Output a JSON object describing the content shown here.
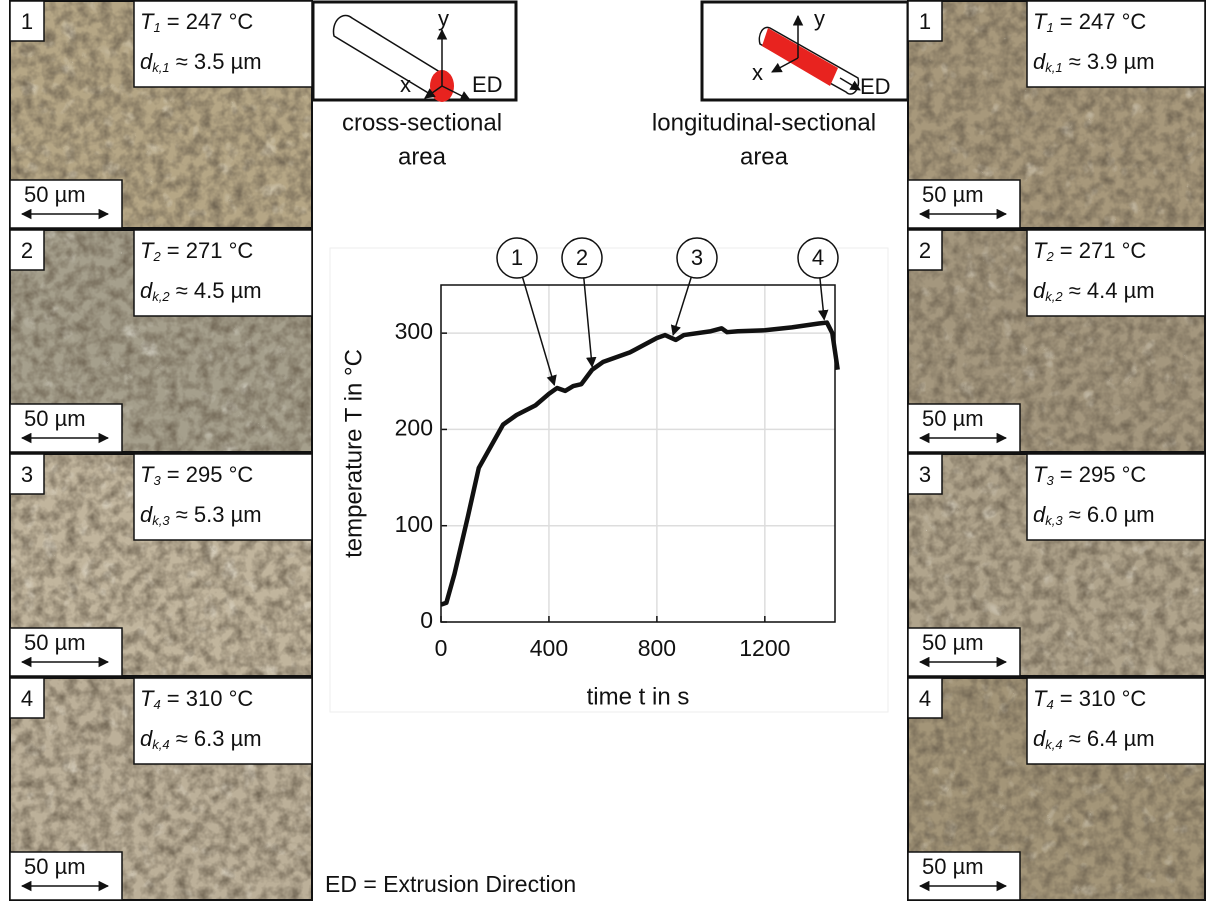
{
  "chart_data": {
    "type": "line",
    "xlabel": "time t in s",
    "ylabel": "temperature T in °C",
    "x": [
      0,
      20,
      50,
      100,
      140,
      180,
      230,
      280,
      350,
      400,
      430,
      460,
      490,
      520,
      560,
      600,
      700,
      800,
      830,
      870,
      900,
      1000,
      1040,
      1060,
      1100,
      1200,
      1300,
      1400,
      1430,
      1450,
      1470
    ],
    "series": [
      {
        "color": "#111111",
        "values": [
          18,
          20,
          50,
          110,
          160,
          180,
          205,
          215,
          225,
          237,
          243,
          240,
          245,
          247,
          262,
          270,
          280,
          295,
          298,
          293,
          298,
          302,
          305,
          301,
          302,
          303,
          306,
          310,
          311,
          300,
          262
        ]
      }
    ],
    "xlim": [
      0,
      1460
    ],
    "ylim": [
      0,
      350
    ],
    "xticks": [
      0,
      400,
      800,
      1200
    ],
    "yticks": [
      0,
      100,
      200,
      300
    ],
    "grid": true,
    "annotations": [
      {
        "label": "1",
        "x": 420,
        "y": 243
      },
      {
        "label": "2",
        "x": 560,
        "y": 262
      },
      {
        "label": "3",
        "x": 860,
        "y": 295
      },
      {
        "label": "4",
        "x": 1420,
        "y": 311
      }
    ]
  },
  "left_diagram": {
    "y": "y",
    "x": "x",
    "ed": "ED",
    "caption_1": "cross-sectional",
    "caption_2": "area"
  },
  "right_diagram": {
    "y": "y",
    "x": "x",
    "ed": "ED",
    "caption_1": "longitudinal-sectional",
    "caption_2": "area"
  },
  "footer": "ED = Extrusion Direction",
  "left_panels": [
    {
      "number": "1",
      "T_sym": "T",
      "T_sub": "1",
      "T_value": " = 247 °C",
      "d_sym": "d",
      "d_sub": "k,1",
      "d_value": " ≈ 3.5 µm",
      "scale": "50 µm",
      "color": "#b5a685"
    },
    {
      "number": "2",
      "T_sym": "T",
      "T_sub": "2",
      "T_value": " = 271 °C",
      "d_sym": "d",
      "d_sub": "k,2",
      "d_value": " ≈ 4.5 µm",
      "scale": "50 µm",
      "color": "#a59f8c"
    },
    {
      "number": "3",
      "T_sym": "T",
      "T_sub": "3",
      "T_value": " =  295 °C",
      "d_sym": "d",
      "d_sub": "k,3",
      "d_value": " ≈  5.3 µm",
      "scale": "50 µm",
      "color": "#c1b59d"
    },
    {
      "number": "4",
      "T_sym": "T",
      "T_sub": "4",
      "T_value": " =  310 °C",
      "d_sym": "d",
      "d_sub": "k,4",
      "d_value": " ≈ 6.3 µm",
      "scale": "50 µm",
      "color": "#bcb099"
    }
  ],
  "right_panels": [
    {
      "number": "1",
      "T_sym": "T",
      "T_sub": "1",
      "T_value": " = 247 °C",
      "d_sym": "d",
      "d_sub": "k,1",
      "d_value": " ≈ 3.9 µm",
      "scale": "50 µm",
      "color": "#a7987b"
    },
    {
      "number": "2",
      "T_sym": "T",
      "T_sub": "2",
      "T_value": " = 271 °C",
      "d_sym": "d",
      "d_sub": "k,2",
      "d_value": " ≈ 4.4 µm",
      "scale": "50 µm",
      "color": "#a4977e"
    },
    {
      "number": "3",
      "T_sym": "T",
      "T_sub": "3",
      "T_value": " =  295 °C",
      "d_sym": "d",
      "d_sub": "k,3",
      "d_value": " ≈  6.0 µm",
      "scale": "50 µm",
      "color": "#b0a48c"
    },
    {
      "number": "4",
      "T_sym": "T",
      "T_sub": "4",
      "T_value": " =  310 °C",
      "d_sym": "d",
      "d_sub": "k,4",
      "d_value": " ≈ 6.4 µm",
      "scale": "50 µm",
      "color": "#a39578"
    }
  ]
}
